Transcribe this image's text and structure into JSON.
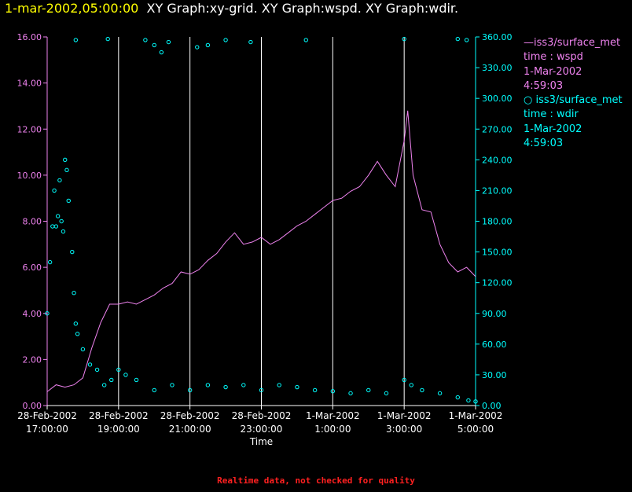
{
  "header": {
    "date": "1-mar-2002,05:00:00",
    "graphs": "XY Graph:xy-grid.  XY Graph:wspd.  XY Graph:wdir."
  },
  "legend": [
    {
      "marker": "line",
      "label": "iss3/surface_met",
      "var": "time : wspd",
      "date": "1-Mar-2002",
      "time": "4:59:03",
      "color": "#ee82ee"
    },
    {
      "marker": "circle",
      "label": "iss3/surface_met",
      "var": "time : wdir",
      "date": "1-Mar-2002",
      "time": "4:59:03",
      "color": "#00ffff"
    }
  ],
  "footer": "Realtime data, not checked for quality",
  "chart_data": {
    "type": "line",
    "xlabel": "Time",
    "x_ticks": [
      {
        "hour": 17,
        "date": "28-Feb-2002",
        "time": "17:00:00"
      },
      {
        "hour": 19,
        "date": "28-Feb-2002",
        "time": "19:00:00"
      },
      {
        "hour": 21,
        "date": "28-Feb-2002",
        "time": "21:00:00"
      },
      {
        "hour": 23,
        "date": "28-Feb-2002",
        "time": "23:00:00"
      },
      {
        "hour": 25,
        "date": "1-Mar-2002",
        "time": "1:00:00"
      },
      {
        "hour": 27,
        "date": "1-Mar-2002",
        "time": "3:00:00"
      },
      {
        "hour": 29,
        "date": "1-Mar-2002",
        "time": "5:00:00"
      }
    ],
    "xlim": [
      17,
      29
    ],
    "grid_x": [
      19,
      21,
      23,
      25,
      27,
      29
    ],
    "y_left": {
      "ticks": [
        "0.00",
        "2.00",
        "4.00",
        "6.00",
        "8.00",
        "10.00",
        "12.00",
        "14.00",
        "16.00"
      ],
      "lim": [
        0,
        16
      ],
      "color": "#ee82ee"
    },
    "y_right": {
      "ticks": [
        "0.00",
        "30.00",
        "60.00",
        "90.00",
        "120.00",
        "150.00",
        "180.00",
        "210.00",
        "240.00",
        "270.00",
        "300.00",
        "330.00",
        "360.00"
      ],
      "lim": [
        0,
        360
      ],
      "color": "#00ffff"
    },
    "series": [
      {
        "name": "wspd",
        "axis": "left",
        "style": "line",
        "color": "#ee82ee",
        "points": [
          [
            17.0,
            0.6
          ],
          [
            17.25,
            0.9
          ],
          [
            17.5,
            0.8
          ],
          [
            17.75,
            0.9
          ],
          [
            18.0,
            1.2
          ],
          [
            18.25,
            2.5
          ],
          [
            18.5,
            3.6
          ],
          [
            18.75,
            4.4
          ],
          [
            19.0,
            4.4
          ],
          [
            19.25,
            4.5
          ],
          [
            19.5,
            4.4
          ],
          [
            19.75,
            4.6
          ],
          [
            20.0,
            4.8
          ],
          [
            20.25,
            5.1
          ],
          [
            20.5,
            5.3
          ],
          [
            20.75,
            5.8
          ],
          [
            21.0,
            5.7
          ],
          [
            21.25,
            5.9
          ],
          [
            21.5,
            6.3
          ],
          [
            21.75,
            6.6
          ],
          [
            22.0,
            7.1
          ],
          [
            22.25,
            7.5
          ],
          [
            22.5,
            7.0
          ],
          [
            22.75,
            7.1
          ],
          [
            23.0,
            7.3
          ],
          [
            23.25,
            7.0
          ],
          [
            23.5,
            7.2
          ],
          [
            23.75,
            7.5
          ],
          [
            24.0,
            7.8
          ],
          [
            24.25,
            8.0
          ],
          [
            24.5,
            8.3
          ],
          [
            24.75,
            8.6
          ],
          [
            25.0,
            8.9
          ],
          [
            25.25,
            9.0
          ],
          [
            25.5,
            9.3
          ],
          [
            25.75,
            9.5
          ],
          [
            26.0,
            10.0
          ],
          [
            26.25,
            10.6
          ],
          [
            26.5,
            10.0
          ],
          [
            26.75,
            9.5
          ],
          [
            27.0,
            11.5
          ],
          [
            27.1,
            12.8
          ],
          [
            27.25,
            10.0
          ],
          [
            27.5,
            8.5
          ],
          [
            27.75,
            8.4
          ],
          [
            28.0,
            7.0
          ],
          [
            28.25,
            6.2
          ],
          [
            28.5,
            5.8
          ],
          [
            28.75,
            6.0
          ],
          [
            29.0,
            5.6
          ]
        ]
      },
      {
        "name": "wdir",
        "axis": "right",
        "style": "circle",
        "color": "#00ffff",
        "points": [
          [
            17.0,
            90
          ],
          [
            17.08,
            140
          ],
          [
            17.15,
            175
          ],
          [
            17.2,
            210
          ],
          [
            17.25,
            175
          ],
          [
            17.3,
            185
          ],
          [
            17.35,
            220
          ],
          [
            17.4,
            180
          ],
          [
            17.45,
            170
          ],
          [
            17.5,
            240
          ],
          [
            17.55,
            230
          ],
          [
            17.6,
            200
          ],
          [
            17.7,
            150
          ],
          [
            17.75,
            110
          ],
          [
            17.8,
            80
          ],
          [
            17.85,
            70
          ],
          [
            18.0,
            55
          ],
          [
            18.2,
            40
          ],
          [
            18.4,
            35
          ],
          [
            18.6,
            20
          ],
          [
            18.8,
            25
          ],
          [
            19.0,
            35
          ],
          [
            19.2,
            30
          ],
          [
            19.5,
            25
          ],
          [
            20.0,
            15
          ],
          [
            20.5,
            20
          ],
          [
            21.0,
            15
          ],
          [
            21.5,
            20
          ],
          [
            22.0,
            18
          ],
          [
            22.5,
            20
          ],
          [
            23.0,
            15
          ],
          [
            23.5,
            20
          ],
          [
            24.0,
            18
          ],
          [
            24.5,
            15
          ],
          [
            25.0,
            14
          ],
          [
            25.5,
            12
          ],
          [
            26.0,
            15
          ],
          [
            26.5,
            12
          ],
          [
            27.0,
            25
          ],
          [
            27.2,
            20
          ],
          [
            27.5,
            15
          ],
          [
            28.0,
            12
          ],
          [
            28.5,
            8
          ],
          [
            28.8,
            5
          ],
          [
            29.0,
            4
          ],
          [
            17.8,
            357
          ],
          [
            18.7,
            358
          ],
          [
            19.75,
            357
          ],
          [
            20.0,
            352
          ],
          [
            20.2,
            345
          ],
          [
            20.4,
            355
          ],
          [
            21.2,
            350
          ],
          [
            21.5,
            352
          ],
          [
            22.0,
            357
          ],
          [
            22.7,
            355
          ],
          [
            24.25,
            357
          ],
          [
            27.0,
            358
          ],
          [
            28.5,
            358
          ],
          [
            28.75,
            357
          ]
        ]
      }
    ]
  }
}
